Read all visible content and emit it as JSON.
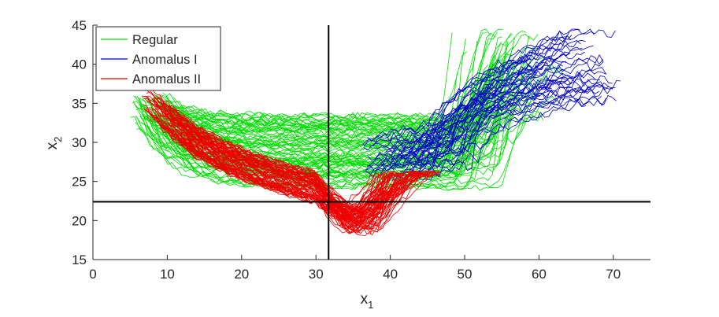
{
  "chart_data": {
    "type": "line",
    "title": "",
    "xlabel": "x",
    "xlabel_sub": "1",
    "ylabel": "x",
    "ylabel_sub": "2",
    "xlim": [
      0,
      75
    ],
    "ylim": [
      15,
      45
    ],
    "xticks": [
      0,
      10,
      20,
      30,
      40,
      50,
      60,
      70
    ],
    "yticks": [
      15,
      20,
      25,
      30,
      35,
      40,
      45
    ],
    "grid": false,
    "legend_position": "top-left",
    "reference_lines": {
      "vertical_x": 31.7,
      "horizontal_y": 22.4,
      "color": "#000000"
    },
    "series": [
      {
        "name": "Regular",
        "color": "#00dd00",
        "count": 80,
        "template": [
          [
            5.5,
            38.5
          ],
          [
            9,
            33.2
          ],
          [
            12,
            30.4
          ],
          [
            15,
            29.1
          ],
          [
            20,
            28.6
          ],
          [
            30,
            28.5
          ],
          [
            40,
            28.5
          ],
          [
            47,
            28.7
          ],
          [
            50,
            31.5
          ],
          [
            53,
            37.5
          ],
          [
            56,
            40.0
          ],
          [
            60,
            41.0
          ]
        ]
      },
      {
        "name": "Anomalus I",
        "color": "#0000cc",
        "count": 45,
        "template": [
          [
            36,
            26.8
          ],
          [
            40,
            27.8
          ],
          [
            44,
            28.7
          ],
          [
            47,
            30.5
          ],
          [
            50,
            34.8
          ],
          [
            54,
            38.8
          ],
          [
            58,
            40.2
          ],
          [
            62,
            40.8
          ],
          [
            67,
            41.3
          ]
        ]
      },
      {
        "name": "Anomalus II",
        "color": "#ee0000",
        "count": 80,
        "template": [
          [
            7,
            35.5
          ],
          [
            10,
            33.0
          ],
          [
            14,
            30.0
          ],
          [
            18,
            28.0
          ],
          [
            22,
            26.5
          ],
          [
            26,
            25.2
          ],
          [
            30,
            24.2
          ],
          [
            33,
            22.8
          ],
          [
            35.5,
            20.5
          ],
          [
            37.5,
            19.8
          ],
          [
            38.5,
            23.0
          ],
          [
            42,
            25.2
          ],
          [
            46,
            26.8
          ]
        ]
      }
    ]
  }
}
